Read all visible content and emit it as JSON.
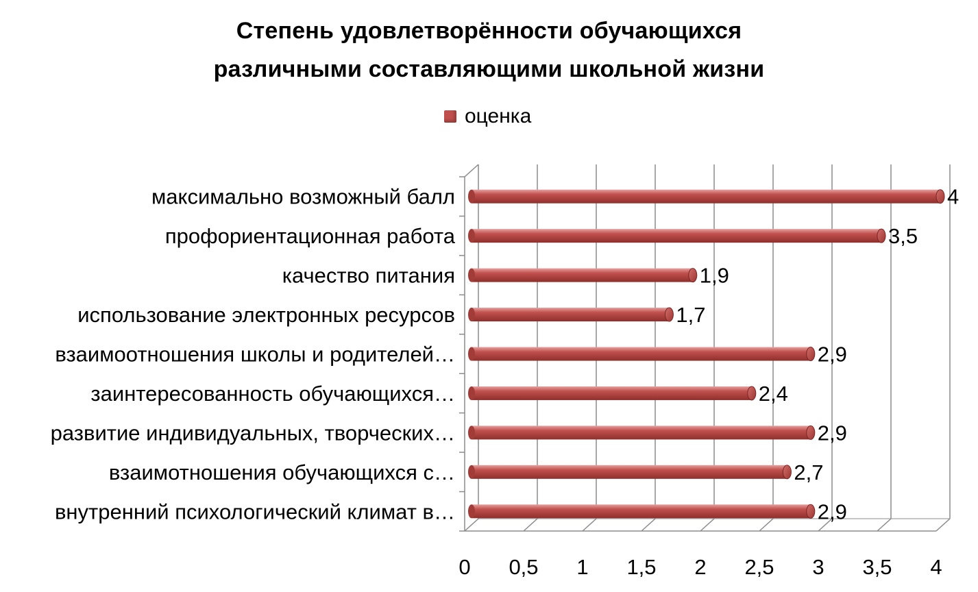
{
  "chart_data": {
    "type": "bar",
    "orientation": "horizontal",
    "title_lines": [
      "Степень удовлетворённости обучающихся",
      "различными составляющими школьной жизни"
    ],
    "legend": {
      "entries": [
        "оценка"
      ],
      "placement": "top"
    },
    "categories": [
      "максимально возможный балл",
      "профориентационная работа",
      "качество питания",
      "использование электронных ресурсов",
      "взаимоотношения школы и родителей…",
      "заинтересованность обучающихся…",
      "развитие индивидуальных, творческих…",
      "взаимотношения обучающихся с…",
      "внутренний психологический климат в…"
    ],
    "series": [
      {
        "name": "оценка",
        "values": [
          4,
          3.5,
          1.9,
          1.7,
          2.9,
          2.4,
          2.9,
          2.7,
          2.9
        ]
      }
    ],
    "value_labels": [
      "4",
      "3,5",
      "1,9",
      "1,7",
      "2,9",
      "2,4",
      "2,9",
      "2,7",
      "2,9"
    ],
    "xlim": [
      0,
      4
    ],
    "x_ticks": [
      0,
      0.5,
      1,
      1.5,
      2,
      2.5,
      3,
      3.5,
      4
    ],
    "x_tick_labels": [
      "0",
      "0,5",
      "1",
      "1,5",
      "2",
      "2,5",
      "3",
      "3,5",
      "4"
    ],
    "grid": true,
    "style": "3d-cylinder",
    "colors": {
      "bar": "#c0504d",
      "bar_dark": "#8e2f2c",
      "bar_light": "#e6a09e",
      "grid": "#8c8c8c"
    }
  }
}
